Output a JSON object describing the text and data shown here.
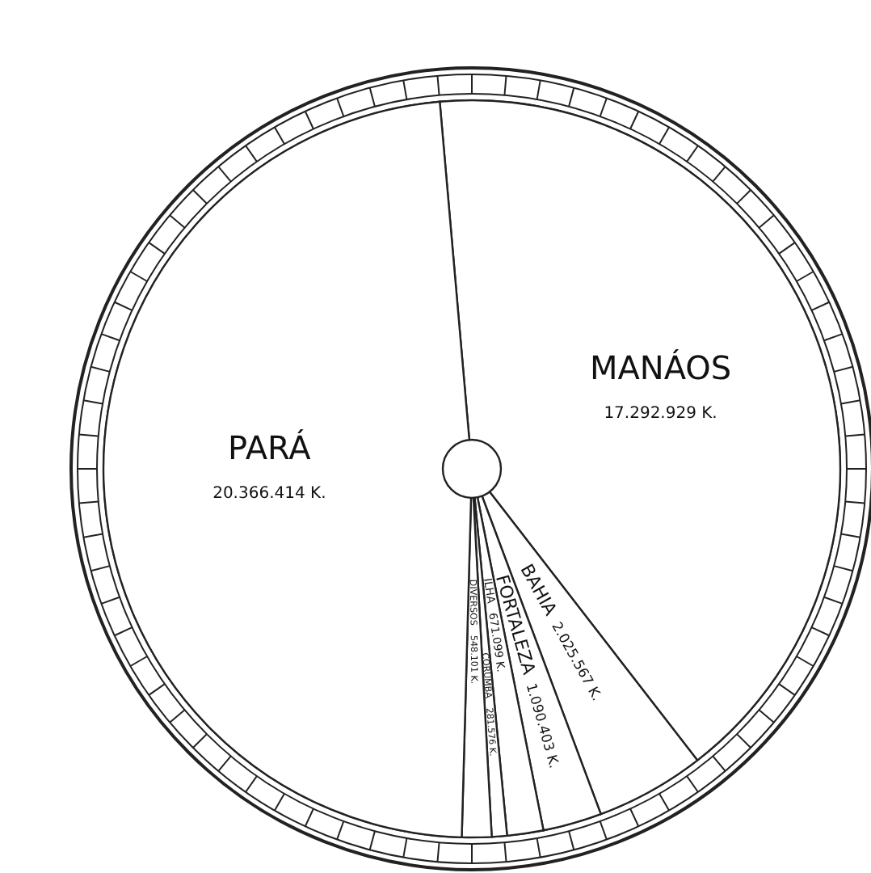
{
  "chart_data": {
    "type": "pie",
    "categories": [
      "MANÁOS",
      "BAHIA",
      "FORTALEZA",
      "ILHA",
      "CORUMBA",
      "DIVERSOS",
      "PARÁ"
    ],
    "values": [
      17292929,
      2025567,
      1090403,
      671099,
      281576,
      548101,
      20366414
    ],
    "value_labels": [
      "17.292.929 K.",
      "2.025.567 K.",
      "1.090.403 K.",
      "671.099 K.",
      "281.576 K.",
      "548.101 K.",
      "20.366.414 K."
    ],
    "colors": [
      "#ffffff",
      "#ffffff",
      "#ffffff",
      "#ffffff",
      "#ffffff",
      "#ffffff",
      "#ffffff"
    ],
    "legend": false
  }
}
